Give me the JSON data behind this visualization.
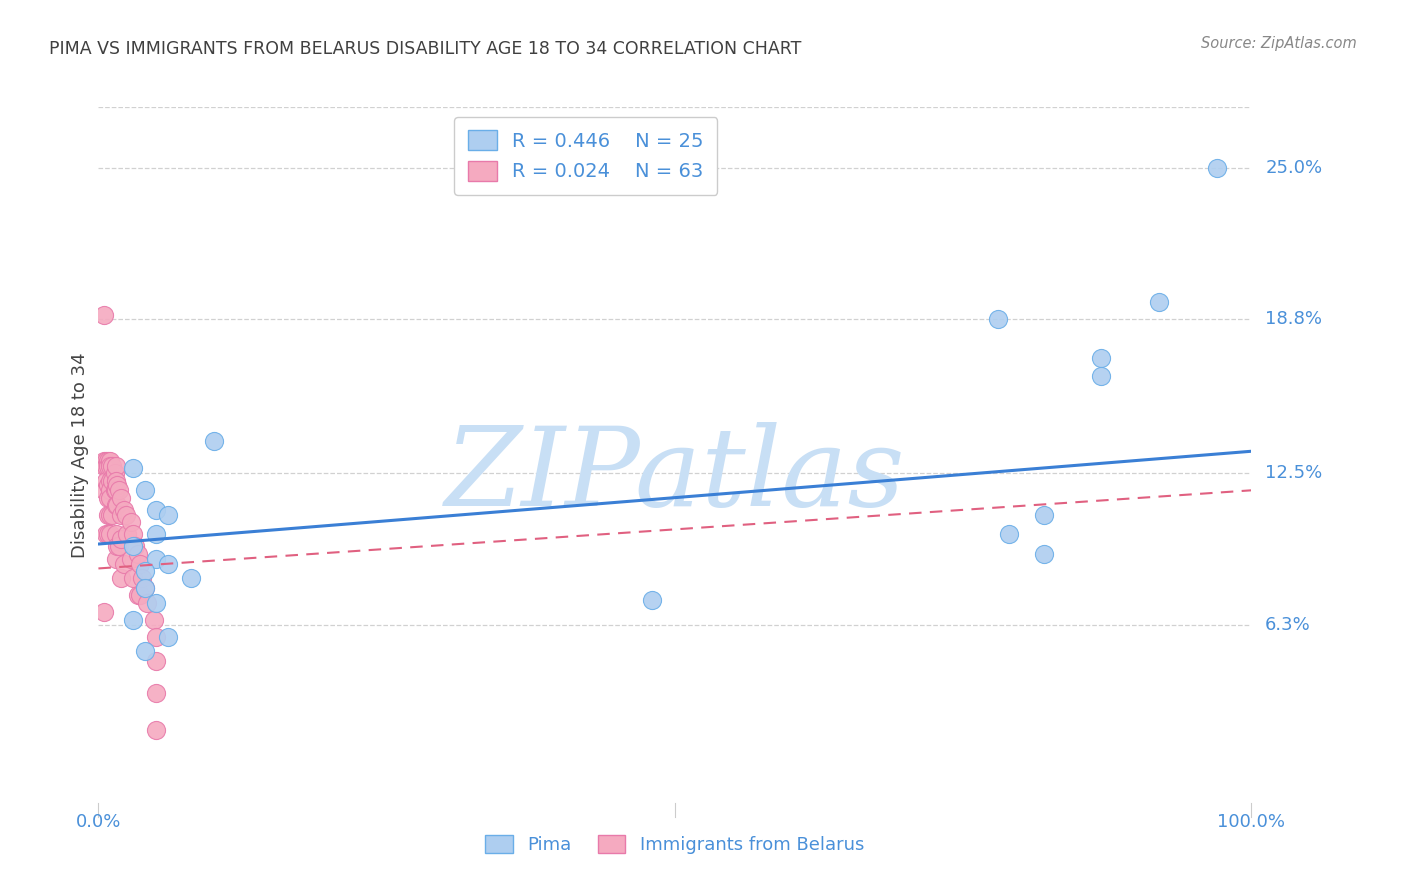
{
  "title": "PIMA VS IMMIGRANTS FROM BELARUS DISABILITY AGE 18 TO 34 CORRELATION CHART",
  "source": "Source: ZipAtlas.com",
  "ylabel": "Disability Age 18 to 34",
  "y_tick_labels": [
    "6.3%",
    "12.5%",
    "18.8%",
    "25.0%"
  ],
  "y_tick_values": [
    0.063,
    0.125,
    0.188,
    0.25
  ],
  "x_lim": [
    0.0,
    1.0
  ],
  "y_lim": [
    -0.01,
    0.275
  ],
  "legend_r1": "R = 0.446",
  "legend_n1": "N = 25",
  "legend_r2": "R = 0.024",
  "legend_n2": "N = 63",
  "color_pima": "#aecef0",
  "color_belarus": "#f5aac0",
  "color_pima_edge": "#6aaee8",
  "color_belarus_edge": "#e87aaa",
  "color_line_pima": "#3a7fd5",
  "color_line_belarus": "#e06080",
  "color_title": "#404040",
  "color_source": "#888888",
  "color_watermark": "#c8dff5",
  "color_tick_labels": "#4a90d9",
  "color_legend_text_rn": "#4a90d9",
  "color_legend_text_name": "#4a90d9",
  "pima_x": [
    0.97,
    0.92,
    0.78,
    0.87,
    0.87,
    0.82,
    0.48,
    0.79,
    0.82,
    0.03,
    0.04,
    0.05,
    0.06,
    0.05,
    0.03,
    0.05,
    0.06,
    0.04,
    0.08,
    0.04,
    0.05,
    0.03,
    0.06,
    0.04,
    0.1
  ],
  "pima_y": [
    0.25,
    0.195,
    0.188,
    0.172,
    0.165,
    0.108,
    0.073,
    0.1,
    0.092,
    0.127,
    0.118,
    0.11,
    0.108,
    0.1,
    0.095,
    0.09,
    0.088,
    0.085,
    0.082,
    0.078,
    0.072,
    0.065,
    0.058,
    0.052,
    0.138
  ],
  "belarus_x": [
    0.005,
    0.005,
    0.005,
    0.005,
    0.005,
    0.007,
    0.007,
    0.007,
    0.007,
    0.008,
    0.008,
    0.008,
    0.008,
    0.008,
    0.008,
    0.01,
    0.01,
    0.01,
    0.01,
    0.01,
    0.01,
    0.01,
    0.012,
    0.012,
    0.012,
    0.014,
    0.014,
    0.015,
    0.015,
    0.015,
    0.015,
    0.015,
    0.015,
    0.016,
    0.016,
    0.016,
    0.018,
    0.018,
    0.02,
    0.02,
    0.02,
    0.02,
    0.022,
    0.022,
    0.024,
    0.025,
    0.028,
    0.028,
    0.03,
    0.03,
    0.032,
    0.034,
    0.034,
    0.036,
    0.036,
    0.038,
    0.04,
    0.042,
    0.048,
    0.05,
    0.05,
    0.05,
    0.05
  ],
  "belarus_y": [
    0.19,
    0.13,
    0.128,
    0.118,
    0.068,
    0.13,
    0.128,
    0.122,
    0.1,
    0.13,
    0.128,
    0.12,
    0.115,
    0.108,
    0.1,
    0.13,
    0.128,
    0.122,
    0.118,
    0.115,
    0.108,
    0.1,
    0.128,
    0.122,
    0.108,
    0.125,
    0.118,
    0.128,
    0.122,
    0.118,
    0.112,
    0.1,
    0.09,
    0.12,
    0.112,
    0.095,
    0.118,
    0.095,
    0.115,
    0.108,
    0.098,
    0.082,
    0.11,
    0.088,
    0.108,
    0.1,
    0.105,
    0.09,
    0.1,
    0.082,
    0.095,
    0.092,
    0.075,
    0.088,
    0.075,
    0.082,
    0.078,
    0.072,
    0.065,
    0.058,
    0.048,
    0.035,
    0.02
  ],
  "pima_line_x": [
    0.0,
    1.0
  ],
  "pima_line_y": [
    0.096,
    0.134
  ],
  "belarus_line_x": [
    0.0,
    1.0
  ],
  "belarus_line_y": [
    0.086,
    0.118
  ],
  "watermark": "ZIPatlas",
  "grid_color": "#cccccc",
  "background_color": "#ffffff",
  "marker_size": 170
}
